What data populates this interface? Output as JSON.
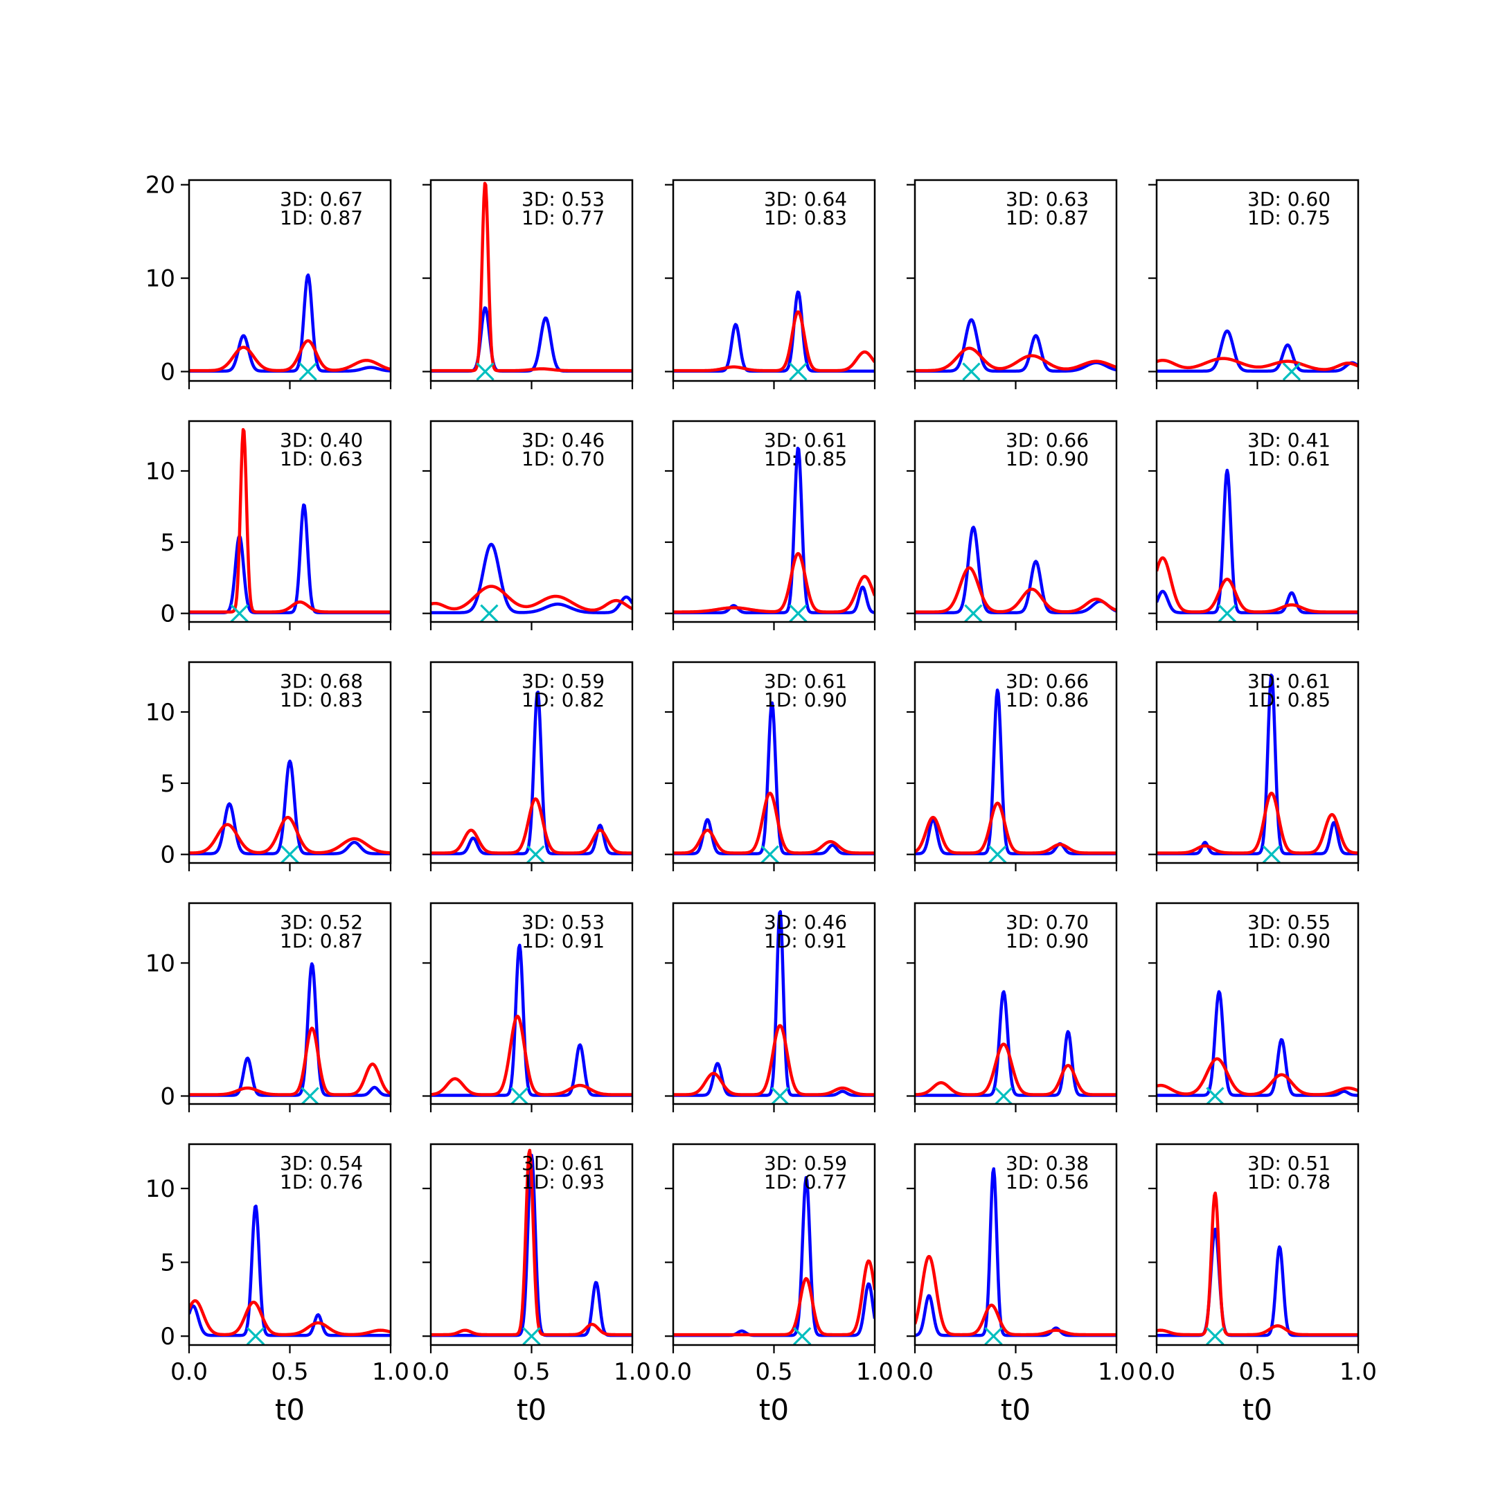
{
  "chart_data": {
    "type": "line",
    "layout": {
      "rows": 5,
      "cols": 5
    },
    "xlabel": "t0",
    "x_ticks": [
      "0.0",
      "0.5",
      "1.0"
    ],
    "xlim": [
      0,
      1
    ],
    "colors": {
      "series_3d": "#0000ff",
      "series_1d": "#ff0000",
      "marker": "#00bfbf"
    },
    "rows": [
      {
        "ylim": [
          -1,
          20.5
        ],
        "y_ticks": [
          0,
          10,
          20
        ]
      },
      {
        "ylim": [
          -0.6,
          13.5
        ],
        "y_ticks": [
          0,
          5,
          10
        ]
      },
      {
        "ylim": [
          -0.6,
          13.5
        ],
        "y_ticks": [
          0,
          5,
          10
        ]
      },
      {
        "ylim": [
          -0.6,
          14.5
        ],
        "y_ticks": [
          0,
          10
        ]
      },
      {
        "ylim": [
          -0.6,
          13.0
        ],
        "y_ticks": [
          0,
          5,
          10
        ]
      }
    ],
    "panels": [
      {
        "row": 0,
        "col": 0,
        "label_3d": "3D: 0.67",
        "label_1d": "1D: 0.87",
        "marker_x": 0.59,
        "blue": [
          [
            0.27,
            3.8,
            0.025
          ],
          [
            0.59,
            10.3,
            0.02
          ],
          [
            0.9,
            0.4,
            0.04
          ]
        ],
        "red": [
          [
            0.27,
            2.5,
            0.05
          ],
          [
            0.59,
            3.2,
            0.04
          ],
          [
            0.88,
            1.1,
            0.06
          ]
        ]
      },
      {
        "row": 0,
        "col": 1,
        "label_3d": "3D: 0.53",
        "label_1d": "1D: 0.77",
        "marker_x": 0.27,
        "blue": [
          [
            0.27,
            6.8,
            0.02
          ],
          [
            0.57,
            5.7,
            0.025
          ]
        ],
        "red": [
          [
            0.27,
            20.2,
            0.015
          ],
          [
            0.55,
            0.2,
            0.05
          ]
        ]
      },
      {
        "row": 0,
        "col": 2,
        "label_3d": "3D: 0.64",
        "label_1d": "1D: 0.83",
        "marker_x": 0.62,
        "blue": [
          [
            0.31,
            5.0,
            0.02
          ],
          [
            0.62,
            8.5,
            0.02
          ]
        ],
        "red": [
          [
            0.3,
            0.4,
            0.05
          ],
          [
            0.62,
            6.3,
            0.03
          ],
          [
            0.95,
            2.0,
            0.04
          ]
        ]
      },
      {
        "row": 0,
        "col": 3,
        "label_3d": "3D: 0.63",
        "label_1d": "1D: 0.87",
        "marker_x": 0.28,
        "blue": [
          [
            0.28,
            5.5,
            0.03
          ],
          [
            0.6,
            3.8,
            0.025
          ],
          [
            0.9,
            0.9,
            0.05
          ]
        ],
        "red": [
          [
            0.27,
            2.4,
            0.06
          ],
          [
            0.58,
            1.6,
            0.07
          ],
          [
            0.9,
            1.0,
            0.07
          ]
        ]
      },
      {
        "row": 0,
        "col": 4,
        "label_3d": "3D: 0.60",
        "label_1d": "1D: 0.75",
        "marker_x": 0.67,
        "blue": [
          [
            0.35,
            4.3,
            0.03
          ],
          [
            0.65,
            2.8,
            0.025
          ],
          [
            0.97,
            0.9,
            0.03
          ]
        ],
        "red": [
          [
            0.03,
            1.1,
            0.06
          ],
          [
            0.33,
            1.3,
            0.09
          ],
          [
            0.65,
            1.0,
            0.08
          ],
          [
            0.95,
            0.8,
            0.05
          ]
        ]
      },
      {
        "row": 1,
        "col": 0,
        "label_3d": "3D: 0.40",
        "label_1d": "1D: 0.63",
        "marker_x": 0.25,
        "blue": [
          [
            0.25,
            5.4,
            0.02
          ],
          [
            0.57,
            7.6,
            0.018
          ]
        ],
        "red": [
          [
            0.27,
            12.9,
            0.015
          ],
          [
            0.55,
            0.7,
            0.04
          ]
        ]
      },
      {
        "row": 1,
        "col": 1,
        "label_3d": "3D: 0.46",
        "label_1d": "1D: 0.70",
        "marker_x": 0.29,
        "blue": [
          [
            0.3,
            4.8,
            0.04
          ],
          [
            0.63,
            0.6,
            0.06
          ],
          [
            0.97,
            1.1,
            0.03
          ]
        ],
        "red": [
          [
            0.02,
            0.6,
            0.05
          ],
          [
            0.3,
            1.8,
            0.08
          ],
          [
            0.62,
            1.1,
            0.08
          ],
          [
            0.92,
            0.8,
            0.05
          ]
        ]
      },
      {
        "row": 1,
        "col": 2,
        "label_3d": "3D: 0.61",
        "label_1d": "1D: 0.85",
        "marker_x": 0.62,
        "blue": [
          [
            0.3,
            0.5,
            0.02
          ],
          [
            0.62,
            11.6,
            0.018
          ],
          [
            0.94,
            1.8,
            0.018
          ]
        ],
        "red": [
          [
            0.3,
            0.3,
            0.08
          ],
          [
            0.62,
            4.1,
            0.035
          ],
          [
            0.95,
            2.5,
            0.04
          ]
        ]
      },
      {
        "row": 1,
        "col": 3,
        "label_3d": "3D: 0.66",
        "label_1d": "1D: 0.90",
        "marker_x": 0.29,
        "blue": [
          [
            0.29,
            6.0,
            0.025
          ],
          [
            0.6,
            3.6,
            0.025
          ],
          [
            0.92,
            0.8,
            0.04
          ]
        ],
        "red": [
          [
            0.27,
            3.1,
            0.045
          ],
          [
            0.58,
            1.6,
            0.05
          ],
          [
            0.9,
            0.9,
            0.05
          ]
        ]
      },
      {
        "row": 1,
        "col": 4,
        "label_3d": "3D: 0.41",
        "label_1d": "1D: 0.61",
        "marker_x": 0.35,
        "blue": [
          [
            0.03,
            1.5,
            0.025
          ],
          [
            0.35,
            10.0,
            0.018
          ],
          [
            0.67,
            1.4,
            0.02
          ]
        ],
        "red": [
          [
            0.03,
            3.8,
            0.04
          ],
          [
            0.35,
            2.3,
            0.04
          ],
          [
            0.67,
            0.5,
            0.05
          ]
        ]
      },
      {
        "row": 2,
        "col": 0,
        "label_3d": "3D: 0.68",
        "label_1d": "1D: 0.83",
        "marker_x": 0.5,
        "blue": [
          [
            0.2,
            3.5,
            0.025
          ],
          [
            0.5,
            6.5,
            0.022
          ],
          [
            0.82,
            0.8,
            0.03
          ]
        ],
        "red": [
          [
            0.19,
            2.0,
            0.05
          ],
          [
            0.49,
            2.5,
            0.045
          ],
          [
            0.82,
            1.0,
            0.06
          ]
        ]
      },
      {
        "row": 2,
        "col": 1,
        "label_3d": "3D: 0.59",
        "label_1d": "1D: 0.82",
        "marker_x": 0.52,
        "blue": [
          [
            0.21,
            1.1,
            0.02
          ],
          [
            0.53,
            11.4,
            0.018
          ],
          [
            0.84,
            2.0,
            0.018
          ]
        ],
        "red": [
          [
            0.2,
            1.6,
            0.035
          ],
          [
            0.52,
            3.8,
            0.035
          ],
          [
            0.84,
            1.6,
            0.035
          ]
        ]
      },
      {
        "row": 2,
        "col": 2,
        "label_3d": "3D: 0.61",
        "label_1d": "1D: 0.90",
        "marker_x": 0.48,
        "blue": [
          [
            0.17,
            2.4,
            0.02
          ],
          [
            0.49,
            10.6,
            0.018
          ],
          [
            0.79,
            0.6,
            0.02
          ]
        ],
        "red": [
          [
            0.17,
            1.6,
            0.035
          ],
          [
            0.48,
            4.2,
            0.035
          ],
          [
            0.78,
            0.8,
            0.04
          ]
        ]
      },
      {
        "row": 2,
        "col": 3,
        "label_3d": "3D: 0.66",
        "label_1d": "1D: 0.86",
        "marker_x": 0.41,
        "blue": [
          [
            0.09,
            2.4,
            0.02
          ],
          [
            0.41,
            11.5,
            0.018
          ],
          [
            0.72,
            0.7,
            0.02
          ]
        ],
        "red": [
          [
            0.09,
            2.5,
            0.035
          ],
          [
            0.41,
            3.5,
            0.035
          ],
          [
            0.72,
            0.6,
            0.04
          ]
        ]
      },
      {
        "row": 2,
        "col": 4,
        "label_3d": "3D: 0.61",
        "label_1d": "1D: 0.85",
        "marker_x": 0.57,
        "blue": [
          [
            0.24,
            0.8,
            0.015
          ],
          [
            0.57,
            12.6,
            0.018
          ],
          [
            0.88,
            2.2,
            0.018
          ]
        ],
        "red": [
          [
            0.24,
            0.5,
            0.04
          ],
          [
            0.57,
            4.2,
            0.035
          ],
          [
            0.87,
            2.7,
            0.035
          ]
        ]
      },
      {
        "row": 3,
        "col": 0,
        "label_3d": "3D: 0.52",
        "label_1d": "1D: 0.87",
        "marker_x": 0.6,
        "blue": [
          [
            0.29,
            2.8,
            0.02
          ],
          [
            0.61,
            9.9,
            0.02
          ],
          [
            0.92,
            0.6,
            0.02
          ]
        ],
        "red": [
          [
            0.29,
            0.5,
            0.05
          ],
          [
            0.61,
            5.0,
            0.03
          ],
          [
            0.91,
            2.3,
            0.035
          ]
        ]
      },
      {
        "row": 3,
        "col": 1,
        "label_3d": "3D: 0.53",
        "label_1d": "1D: 0.91",
        "marker_x": 0.44,
        "blue": [
          [
            0.44,
            11.3,
            0.018
          ],
          [
            0.74,
            3.8,
            0.02
          ]
        ],
        "red": [
          [
            0.12,
            1.2,
            0.04
          ],
          [
            0.43,
            5.9,
            0.035
          ],
          [
            0.74,
            0.7,
            0.05
          ]
        ]
      },
      {
        "row": 3,
        "col": 2,
        "label_3d": "3D: 0.46",
        "label_1d": "1D: 0.91",
        "marker_x": 0.53,
        "blue": [
          [
            0.22,
            2.4,
            0.02
          ],
          [
            0.53,
            13.9,
            0.016
          ],
          [
            0.84,
            0.3,
            0.02
          ]
        ],
        "red": [
          [
            0.2,
            1.6,
            0.04
          ],
          [
            0.53,
            5.2,
            0.035
          ],
          [
            0.84,
            0.5,
            0.04
          ]
        ]
      },
      {
        "row": 3,
        "col": 3,
        "label_3d": "3D: 0.70",
        "label_1d": "1D: 0.90",
        "marker_x": 0.44,
        "blue": [
          [
            0.44,
            7.8,
            0.02
          ],
          [
            0.76,
            4.8,
            0.018
          ]
        ],
        "red": [
          [
            0.13,
            0.9,
            0.04
          ],
          [
            0.44,
            3.8,
            0.04
          ],
          [
            0.76,
            2.2,
            0.035
          ]
        ]
      },
      {
        "row": 3,
        "col": 4,
        "label_3d": "3D: 0.55",
        "label_1d": "1D: 0.90",
        "marker_x": 0.29,
        "blue": [
          [
            0.31,
            7.8,
            0.02
          ],
          [
            0.62,
            4.2,
            0.02
          ],
          [
            0.93,
            0.3,
            0.02
          ]
        ],
        "red": [
          [
            0.02,
            0.7,
            0.05
          ],
          [
            0.3,
            2.7,
            0.05
          ],
          [
            0.62,
            1.5,
            0.05
          ],
          [
            0.95,
            0.5,
            0.05
          ]
        ]
      },
      {
        "row": 4,
        "col": 0,
        "label_3d": "3D: 0.54",
        "label_1d": "1D: 0.76",
        "marker_x": 0.33,
        "blue": [
          [
            0.02,
            2.0,
            0.025
          ],
          [
            0.33,
            8.8,
            0.018
          ],
          [
            0.64,
            1.4,
            0.018
          ]
        ],
        "red": [
          [
            0.03,
            2.3,
            0.04
          ],
          [
            0.32,
            2.2,
            0.04
          ],
          [
            0.64,
            0.8,
            0.05
          ],
          [
            0.95,
            0.3,
            0.05
          ]
        ]
      },
      {
        "row": 4,
        "col": 1,
        "label_3d": "3D: 0.61",
        "label_1d": "1D: 0.93",
        "marker_x": 0.5,
        "blue": [
          [
            0.5,
            12.2,
            0.018
          ],
          [
            0.82,
            3.6,
            0.018
          ]
        ],
        "red": [
          [
            0.17,
            0.3,
            0.03
          ],
          [
            0.49,
            12.5,
            0.018
          ],
          [
            0.8,
            0.7,
            0.03
          ]
        ]
      },
      {
        "row": 4,
        "col": 2,
        "label_3d": "3D: 0.59",
        "label_1d": "1D: 0.77",
        "marker_x": 0.64,
        "blue": [
          [
            0.34,
            0.3,
            0.02
          ],
          [
            0.66,
            10.7,
            0.018
          ],
          [
            0.97,
            3.5,
            0.02
          ]
        ],
        "red": [
          [
            0.66,
            3.8,
            0.03
          ],
          [
            0.97,
            5.0,
            0.03
          ]
        ]
      },
      {
        "row": 4,
        "col": 3,
        "label_3d": "3D: 0.38",
        "label_1d": "1D: 0.56",
        "marker_x": 0.39,
        "blue": [
          [
            0.07,
            2.7,
            0.02
          ],
          [
            0.39,
            11.3,
            0.016
          ],
          [
            0.7,
            0.5,
            0.02
          ]
        ],
        "red": [
          [
            0.07,
            5.3,
            0.035
          ],
          [
            0.38,
            2.0,
            0.035
          ],
          [
            0.7,
            0.3,
            0.04
          ]
        ]
      },
      {
        "row": 4,
        "col": 4,
        "label_3d": "3D: 0.51",
        "label_1d": "1D: 0.78",
        "marker_x": 0.29,
        "blue": [
          [
            0.29,
            7.2,
            0.02
          ],
          [
            0.61,
            6.0,
            0.018
          ]
        ],
        "red": [
          [
            0.02,
            0.3,
            0.04
          ],
          [
            0.29,
            9.6,
            0.018
          ],
          [
            0.6,
            0.6,
            0.04
          ]
        ]
      }
    ]
  }
}
